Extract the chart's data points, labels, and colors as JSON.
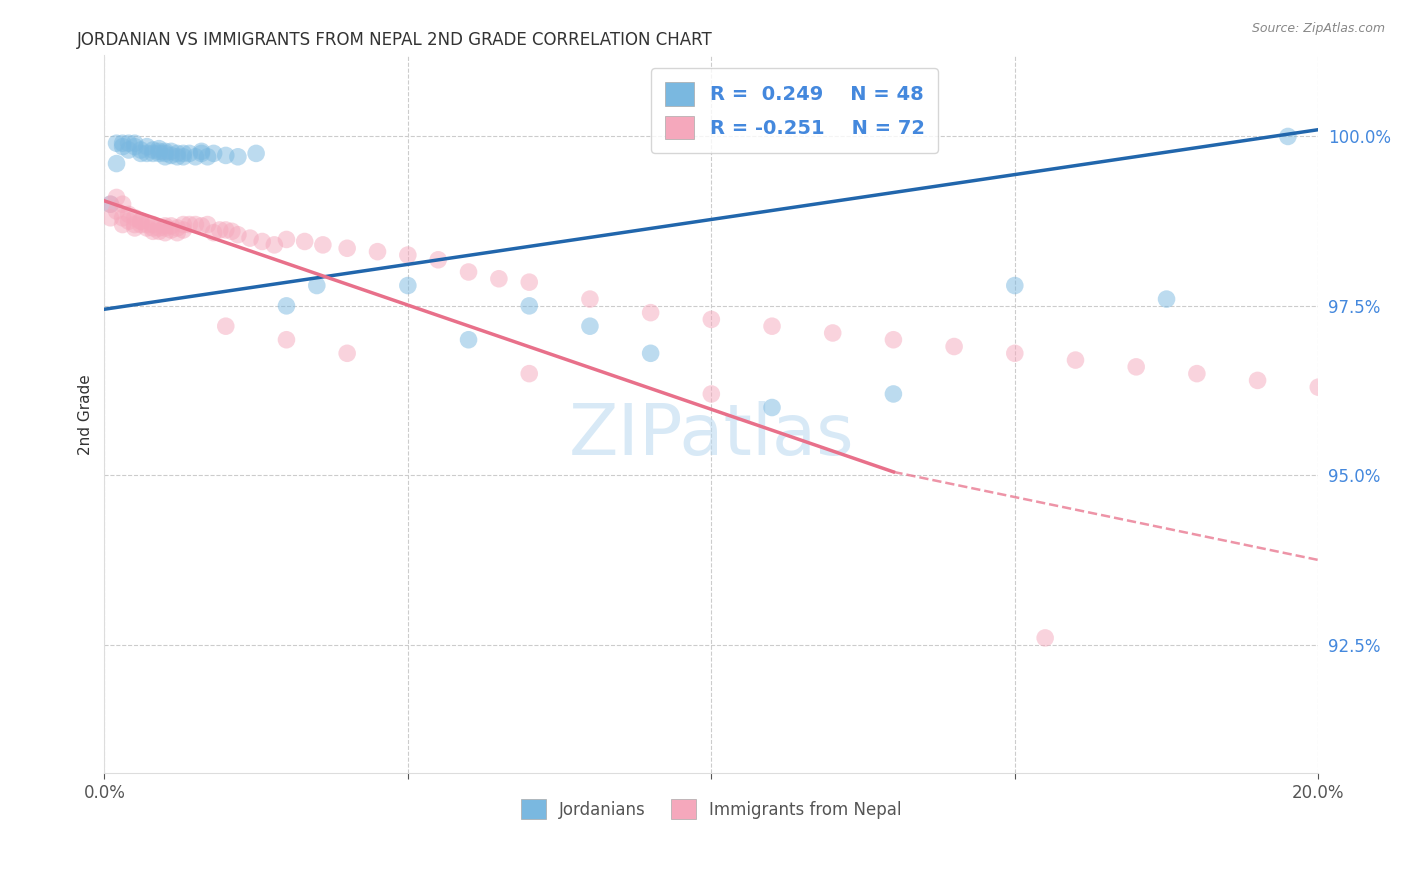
{
  "title": "JORDANIAN VS IMMIGRANTS FROM NEPAL 2ND GRADE CORRELATION CHART",
  "source": "Source: ZipAtlas.com",
  "ylabel": "2nd Grade",
  "ytick_labels": [
    "100.0%",
    "97.5%",
    "95.0%",
    "92.5%"
  ],
  "ytick_values": [
    1.0,
    0.975,
    0.95,
    0.925
  ],
  "xmin": 0.0,
  "xmax": 0.2,
  "ymin": 0.906,
  "ymax": 1.012,
  "blue_R": 0.249,
  "blue_N": 48,
  "pink_R": -0.251,
  "pink_N": 72,
  "blue_color": "#7ab8e0",
  "pink_color": "#f5a8bc",
  "blue_line_color": "#2166ac",
  "pink_line_color": "#e8708a",
  "blue_line_x0": 0.0,
  "blue_line_y0": 0.9745,
  "blue_line_x1": 0.2,
  "blue_line_y1": 1.001,
  "pink_line_x0": 0.0,
  "pink_line_y0": 0.9905,
  "pink_line_solid_x1": 0.13,
  "pink_line_solid_y1": 0.9505,
  "pink_line_dash_x1": 0.2,
  "pink_line_dash_y1": 0.9375,
  "legend_blue_label": "Jordanians",
  "legend_pink_label": "Immigrants from Nepal",
  "blue_x": [
    0.001,
    0.002,
    0.002,
    0.003,
    0.003,
    0.004,
    0.004,
    0.005,
    0.005,
    0.006,
    0.006,
    0.007,
    0.007,
    0.008,
    0.008,
    0.009,
    0.009,
    0.009,
    0.01,
    0.01,
    0.01,
    0.011,
    0.011,
    0.012,
    0.012,
    0.013,
    0.013,
    0.014,
    0.015,
    0.016,
    0.016,
    0.017,
    0.018,
    0.02,
    0.022,
    0.025,
    0.03,
    0.035,
    0.05,
    0.06,
    0.07,
    0.08,
    0.09,
    0.11,
    0.13,
    0.15,
    0.175,
    0.195
  ],
  "blue_y": [
    0.99,
    0.999,
    0.996,
    0.999,
    0.9985,
    0.999,
    0.998,
    0.999,
    0.9985,
    0.998,
    0.9975,
    0.9975,
    0.9985,
    0.9975,
    0.998,
    0.9975,
    0.9978,
    0.9982,
    0.9975,
    0.997,
    0.9978,
    0.9972,
    0.9978,
    0.9975,
    0.997,
    0.9975,
    0.997,
    0.9975,
    0.997,
    0.9975,
    0.9978,
    0.997,
    0.9975,
    0.9972,
    0.997,
    0.9975,
    0.975,
    0.978,
    0.978,
    0.97,
    0.975,
    0.972,
    0.968,
    0.96,
    0.962,
    0.978,
    0.976,
    1.0
  ],
  "pink_x": [
    0.001,
    0.001,
    0.002,
    0.002,
    0.003,
    0.003,
    0.003,
    0.004,
    0.004,
    0.005,
    0.005,
    0.005,
    0.006,
    0.006,
    0.006,
    0.007,
    0.007,
    0.008,
    0.008,
    0.008,
    0.009,
    0.009,
    0.01,
    0.01,
    0.01,
    0.011,
    0.011,
    0.012,
    0.012,
    0.013,
    0.013,
    0.014,
    0.015,
    0.016,
    0.017,
    0.018,
    0.019,
    0.02,
    0.021,
    0.022,
    0.024,
    0.026,
    0.028,
    0.03,
    0.033,
    0.036,
    0.04,
    0.045,
    0.05,
    0.055,
    0.06,
    0.065,
    0.07,
    0.08,
    0.09,
    0.1,
    0.11,
    0.12,
    0.13,
    0.14,
    0.15,
    0.16,
    0.17,
    0.18,
    0.19,
    0.2,
    0.02,
    0.03,
    0.04,
    0.07,
    0.1,
    0.155
  ],
  "pink_y": [
    0.99,
    0.988,
    0.991,
    0.989,
    0.99,
    0.988,
    0.987,
    0.9885,
    0.9875,
    0.988,
    0.987,
    0.9865,
    0.9875,
    0.987,
    0.9875,
    0.987,
    0.9865,
    0.987,
    0.986,
    0.9865,
    0.9865,
    0.986,
    0.9868,
    0.9865,
    0.9858,
    0.9868,
    0.9862,
    0.9865,
    0.9858,
    0.987,
    0.9862,
    0.987,
    0.987,
    0.9868,
    0.987,
    0.9858,
    0.9862,
    0.9862,
    0.986,
    0.9855,
    0.985,
    0.9845,
    0.984,
    0.9848,
    0.9845,
    0.984,
    0.9835,
    0.983,
    0.9825,
    0.9818,
    0.98,
    0.979,
    0.9785,
    0.976,
    0.974,
    0.973,
    0.972,
    0.971,
    0.97,
    0.969,
    0.968,
    0.967,
    0.966,
    0.965,
    0.964,
    0.963,
    0.972,
    0.97,
    0.968,
    0.965,
    0.962,
    0.926
  ]
}
